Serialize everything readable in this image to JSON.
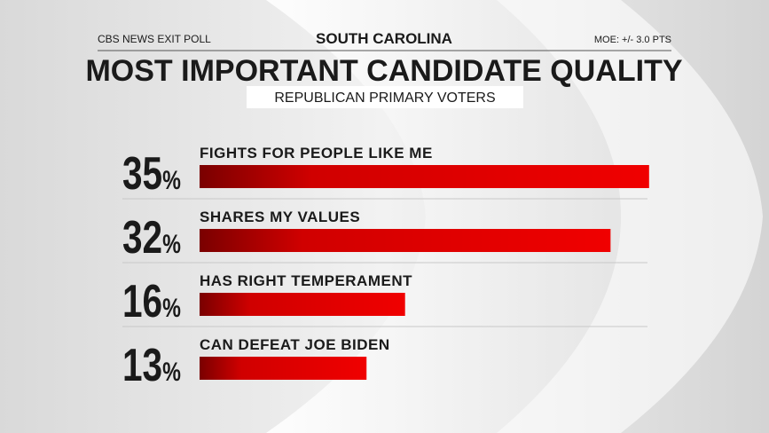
{
  "chart_data": {
    "type": "bar",
    "source": "CBS NEWS EXIT POLL",
    "location": "SOUTH CAROLINA",
    "moe": "MOE: +/- 3.0 PTS",
    "title": "MOST IMPORTANT CANDIDATE QUALITY",
    "subtitle": "REPUBLICAN PRIMARY VOTERS",
    "categories": [
      "FIGHTS FOR PEOPLE LIKE ME",
      "SHARES MY VALUES",
      "HAS RIGHT TEMPERAMENT",
      "CAN DEFEAT JOE BIDEN"
    ],
    "values": [
      35,
      32,
      16,
      13
    ],
    "value_labels": [
      "35%",
      "32%",
      "16%",
      "13%"
    ],
    "color": "#e00000"
  }
}
